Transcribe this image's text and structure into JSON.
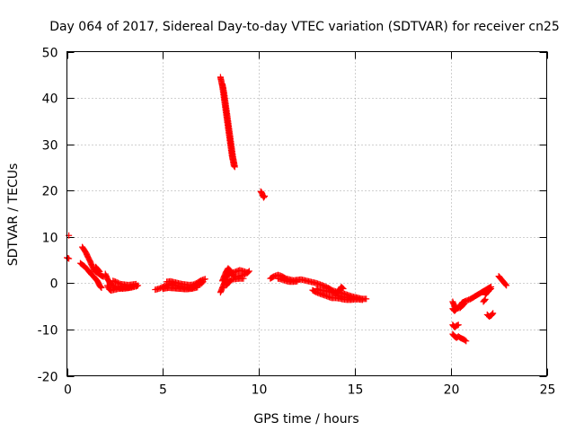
{
  "chart_data": {
    "type": "scatter",
    "title": "Day 064 of 2017, Sidereal Day-to-day VTEC variation (SDTVAR) for receiver cn25",
    "xlabel": "GPS time / hours",
    "ylabel": "SDTVAR / TECUs",
    "xlim": [
      0,
      25
    ],
    "ylim": [
      -20,
      50
    ],
    "xticks": [
      0,
      5,
      10,
      15,
      20,
      25
    ],
    "yticks": [
      -20,
      -10,
      0,
      10,
      20,
      30,
      40,
      50
    ],
    "xtick_labels": [
      "0",
      "5",
      "10",
      "15",
      "20",
      "25"
    ],
    "ytick_labels": [
      "-20",
      "-10",
      "0",
      "10",
      "20",
      "30",
      "40",
      "50"
    ],
    "grid": true,
    "marker": "+",
    "color": "#ff0000",
    "series": [
      {
        "name": "cn25",
        "segments": [
          [
            [
              0.0,
              5.5
            ],
            [
              0.1,
              5.3
            ]
          ],
          [
            [
              0.1,
              10.3
            ]
          ],
          [
            [
              0.8,
              7.8
            ],
            [
              0.9,
              7.2
            ],
            [
              1.0,
              6.5
            ],
            [
              1.1,
              5.6
            ],
            [
              1.2,
              4.8
            ],
            [
              1.3,
              3.8
            ],
            [
              1.4,
              3.0
            ],
            [
              1.5,
              2.5
            ]
          ],
          [
            [
              0.7,
              4.3
            ],
            [
              0.8,
              4.0
            ],
            [
              0.9,
              3.7
            ],
            [
              1.0,
              3.2
            ],
            [
              1.1,
              2.8
            ],
            [
              1.2,
              2.3
            ],
            [
              1.3,
              1.8
            ],
            [
              1.4,
              1.4
            ],
            [
              1.5,
              0.9
            ],
            [
              1.6,
              0.4
            ],
            [
              1.7,
              -0.5
            ],
            [
              1.8,
              -1.0
            ]
          ],
          [
            [
              1.5,
              2.5
            ],
            [
              1.6,
              2.2
            ],
            [
              1.7,
              1.9
            ],
            [
              1.8,
              1.6
            ],
            [
              1.9,
              1.4
            ]
          ],
          [
            [
              1.5,
              3.5
            ],
            [
              1.6,
              3.0
            ],
            [
              1.7,
              2.5
            ]
          ],
          [
            [
              2.0,
              2.0
            ],
            [
              2.1,
              1.0
            ],
            [
              2.2,
              0.3
            ],
            [
              2.3,
              -0.3
            ],
            [
              2.4,
              -0.6
            ],
            [
              2.6,
              -0.8
            ],
            [
              2.8,
              -1.0
            ],
            [
              3.0,
              -0.9
            ],
            [
              3.2,
              -1.0
            ],
            [
              3.4,
              -0.6
            ],
            [
              3.6,
              -0.7
            ],
            [
              3.7,
              -0.5
            ]
          ],
          [
            [
              2.1,
              -0.5
            ],
            [
              2.2,
              -1.3
            ],
            [
              2.3,
              -1.6
            ],
            [
              2.5,
              -1.4
            ],
            [
              2.7,
              -1.2
            ],
            [
              2.9,
              -1.2
            ],
            [
              3.1,
              -1.1
            ],
            [
              3.3,
              -1.0
            ],
            [
              3.5,
              -0.8
            ]
          ],
          [
            [
              2.4,
              0.5
            ],
            [
              2.6,
              0.2
            ],
            [
              2.8,
              -0.2
            ],
            [
              3.0,
              -0.3
            ],
            [
              3.2,
              -0.4
            ],
            [
              3.4,
              -0.3
            ],
            [
              3.6,
              -0.2
            ]
          ],
          [
            [
              4.6,
              -1.4
            ],
            [
              4.8,
              -1.2
            ],
            [
              5.0,
              -0.8
            ],
            [
              5.2,
              -0.4
            ],
            [
              5.4,
              0.0
            ],
            [
              5.6,
              -0.4
            ],
            [
              5.8,
              -0.6
            ],
            [
              6.0,
              -0.7
            ],
            [
              6.2,
              -0.9
            ],
            [
              6.4,
              -1.0
            ],
            [
              6.6,
              -0.8
            ],
            [
              6.8,
              -0.5
            ],
            [
              7.0,
              -0.1
            ],
            [
              7.1,
              0.3
            ]
          ],
          [
            [
              5.2,
              0.3
            ],
            [
              5.4,
              0.4
            ],
            [
              5.6,
              0.2
            ],
            [
              5.8,
              0.0
            ],
            [
              6.0,
              -0.2
            ],
            [
              6.2,
              -0.3
            ],
            [
              6.4,
              -0.4
            ],
            [
              6.6,
              -0.3
            ],
            [
              6.8,
              0.1
            ],
            [
              7.0,
              0.6
            ],
            [
              7.2,
              0.9
            ]
          ],
          [
            [
              5.0,
              -1.2
            ],
            [
              5.3,
              -1.0
            ],
            [
              5.6,
              -1.1
            ],
            [
              5.9,
              -1.2
            ],
            [
              6.2,
              -1.3
            ],
            [
              6.5,
              -1.2
            ],
            [
              6.8,
              -0.9
            ]
          ],
          [
            [
              8.0,
              44.5
            ],
            [
              8.05,
              43.5
            ],
            [
              8.1,
              42.5
            ],
            [
              8.15,
              41.0
            ],
            [
              8.2,
              39.5
            ],
            [
              8.25,
              38.0
            ],
            [
              8.3,
              36.5
            ],
            [
              8.35,
              35.0
            ],
            [
              8.4,
              33.5
            ],
            [
              8.45,
              32.0
            ],
            [
              8.5,
              30.5
            ],
            [
              8.55,
              29.0
            ],
            [
              8.6,
              27.5
            ],
            [
              8.65,
              26.5
            ],
            [
              8.7,
              25.3
            ]
          ],
          [
            [
              8.1,
              43.0
            ],
            [
              8.15,
              42.0
            ],
            [
              8.2,
              40.8
            ],
            [
              8.25,
              39.3
            ],
            [
              8.3,
              37.8
            ],
            [
              8.35,
              36.3
            ],
            [
              8.4,
              34.8
            ],
            [
              8.45,
              33.3
            ],
            [
              8.5,
              31.8
            ],
            [
              8.55,
              30.3
            ],
            [
              8.6,
              28.8
            ],
            [
              8.65,
              27.3
            ],
            [
              8.7,
              26.2
            ],
            [
              8.75,
              25.1
            ]
          ],
          [
            [
              8.0,
              -2.0
            ],
            [
              8.1,
              -1.0
            ],
            [
              8.2,
              0.0
            ],
            [
              8.3,
              1.0
            ],
            [
              8.4,
              1.8
            ],
            [
              8.5,
              2.3
            ],
            [
              8.6,
              2.0
            ],
            [
              8.7,
              1.5
            ],
            [
              8.8,
              1.3
            ],
            [
              9.0,
              1.5
            ],
            [
              9.2,
              1.8
            ],
            [
              9.4,
              2.2
            ],
            [
              9.5,
              2.6
            ]
          ],
          [
            [
              8.1,
              0.5
            ],
            [
              8.2,
              1.5
            ],
            [
              8.3,
              2.5
            ],
            [
              8.4,
              3.2
            ],
            [
              8.5,
              2.8
            ],
            [
              8.6,
              2.2
            ],
            [
              8.8,
              2.5
            ],
            [
              9.0,
              2.8
            ],
            [
              9.2,
              2.6
            ],
            [
              9.4,
              2.3
            ]
          ],
          [
            [
              8.3,
              -0.5
            ],
            [
              8.4,
              0.0
            ],
            [
              8.5,
              0.5
            ],
            [
              8.6,
              0.8
            ],
            [
              8.8,
              0.9
            ],
            [
              9.0,
              1.0
            ],
            [
              9.2,
              1.0
            ]
          ],
          [
            [
              10.1,
              19.8
            ],
            [
              10.15,
              19.5
            ],
            [
              10.2,
              19.0
            ],
            [
              10.25,
              18.5
            ],
            [
              10.3,
              18.8
            ]
          ],
          [
            [
              10.6,
              1.0
            ],
            [
              10.8,
              1.5
            ],
            [
              11.0,
              1.8
            ],
            [
              11.2,
              1.5
            ],
            [
              11.4,
              1.0
            ],
            [
              11.6,
              0.8
            ],
            [
              11.8,
              0.6
            ],
            [
              12.0,
              0.7
            ],
            [
              12.2,
              0.8
            ],
            [
              12.4,
              0.6
            ],
            [
              12.6,
              0.4
            ],
            [
              12.8,
              0.2
            ],
            [
              13.0,
              0.0
            ],
            [
              13.2,
              -0.3
            ],
            [
              13.4,
              -0.6
            ],
            [
              13.6,
              -1.0
            ],
            [
              13.8,
              -1.5
            ],
            [
              14.0,
              -1.8
            ],
            [
              14.2,
              -2.0
            ],
            [
              14.4,
              -2.2
            ],
            [
              14.6,
              -2.5
            ],
            [
              14.8,
              -2.8
            ],
            [
              15.0,
              -3.0
            ],
            [
              15.2,
              -3.2
            ],
            [
              15.4,
              -3.4
            ],
            [
              15.6,
              -3.4
            ]
          ],
          [
            [
              11.0,
              1.0
            ],
            [
              11.2,
              0.8
            ],
            [
              11.4,
              0.5
            ],
            [
              11.6,
              0.3
            ],
            [
              11.8,
              0.3
            ],
            [
              12.0,
              0.4
            ]
          ],
          [
            [
              12.8,
              -1.5
            ],
            [
              13.0,
              -2.0
            ],
            [
              13.2,
              -2.3
            ],
            [
              13.4,
              -2.6
            ],
            [
              13.6,
              -2.9
            ],
            [
              13.8,
              -3.2
            ],
            [
              14.0,
              -3.2
            ],
            [
              14.2,
              -3.3
            ],
            [
              14.4,
              -3.5
            ],
            [
              14.6,
              -3.6
            ],
            [
              14.8,
              -3.6
            ],
            [
              15.0,
              -3.5
            ],
            [
              15.2,
              -3.5
            ],
            [
              15.4,
              -3.6
            ]
          ],
          [
            [
              13.0,
              -1.2
            ],
            [
              13.2,
              -1.5
            ],
            [
              13.4,
              -1.6
            ],
            [
              13.6,
              -1.8
            ],
            [
              13.8,
              -2.0
            ],
            [
              14.0,
              -2.3
            ],
            [
              14.2,
              -1.5
            ],
            [
              14.3,
              -0.8
            ],
            [
              14.4,
              -1.2
            ]
          ],
          [
            [
              14.0,
              -2.6
            ],
            [
              14.2,
              -2.8
            ],
            [
              14.4,
              -3.0
            ],
            [
              14.6,
              -3.1
            ],
            [
              14.8,
              -3.3
            ],
            [
              15.0,
              -3.3
            ]
          ],
          [
            [
              20.1,
              -4.0
            ],
            [
              20.2,
              -5.0
            ],
            [
              20.3,
              -5.5
            ],
            [
              20.4,
              -5.2
            ],
            [
              20.5,
              -4.8
            ],
            [
              20.6,
              -4.2
            ],
            [
              20.7,
              -4.0
            ],
            [
              20.8,
              -3.8
            ],
            [
              21.0,
              -3.5
            ],
            [
              21.2,
              -3.0
            ],
            [
              21.4,
              -2.5
            ],
            [
              21.6,
              -2.0
            ],
            [
              21.8,
              -1.5
            ],
            [
              22.0,
              -1.0
            ],
            [
              22.1,
              -0.8
            ]
          ],
          [
            [
              20.1,
              -5.5
            ],
            [
              20.2,
              -6.0
            ],
            [
              20.3,
              -5.5
            ],
            [
              20.5,
              -5.3
            ],
            [
              20.7,
              -4.5
            ]
          ],
          [
            [
              21.8,
              -2.5
            ],
            [
              21.9,
              -2.0
            ],
            [
              22.0,
              -1.5
            ],
            [
              22.1,
              -1.2
            ]
          ],
          [
            [
              21.7,
              -4.0
            ],
            [
              21.8,
              -3.5
            ]
          ],
          [
            [
              20.1,
              -9.0
            ],
            [
              20.2,
              -9.5
            ],
            [
              20.3,
              -9.2
            ],
            [
              20.4,
              -9.0
            ]
          ],
          [
            [
              20.1,
              -11.0
            ],
            [
              20.2,
              -11.5
            ],
            [
              20.3,
              -11.8
            ],
            [
              20.4,
              -11.5
            ],
            [
              20.5,
              -11.8
            ],
            [
              20.6,
              -12.0
            ],
            [
              20.7,
              -12.2
            ],
            [
              20.8,
              -12.5
            ]
          ],
          [
            [
              21.9,
              -6.8
            ],
            [
              22.0,
              -7.2
            ],
            [
              22.1,
              -7.0
            ],
            [
              22.2,
              -6.5
            ]
          ],
          [
            [
              22.5,
              1.5
            ],
            [
              22.6,
              1.0
            ],
            [
              22.7,
              0.5
            ],
            [
              22.8,
              0.0
            ],
            [
              22.9,
              -0.5
            ]
          ]
        ]
      }
    ]
  }
}
